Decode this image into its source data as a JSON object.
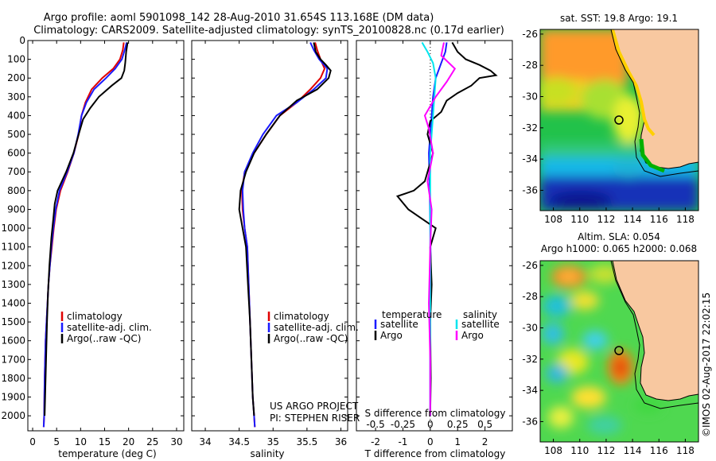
{
  "header": {
    "line1": "Argo profile: aoml 5901098_142 28-Aug-2010 31.654S 113.168E (DM data)",
    "line2": "Climatology: CARS2009. Satellite-adjusted climatology: synTS_20100828.nc (0.17d earlier)"
  },
  "colors": {
    "climatology": "#e00000",
    "satellite": "#1a1aff",
    "argo": "#000000",
    "salinity_satellite": "#00e5ee",
    "salinity_argo": "#ff00ff",
    "land": "#f8c8a0"
  },
  "chart_data": [
    {
      "type": "line",
      "panel": "temperature",
      "xlabel": "temperature (deg C)",
      "ylabel": "",
      "xlim": [
        -1,
        31.5
      ],
      "ylim": [
        2080,
        0
      ],
      "xticks": [
        0,
        5,
        10,
        15,
        20,
        25,
        30
      ],
      "yticks": [
        0,
        100,
        200,
        300,
        400,
        500,
        600,
        700,
        800,
        900,
        1000,
        1100,
        1200,
        1300,
        1400,
        1500,
        1600,
        1700,
        1800,
        1900,
        2000
      ],
      "legend": [
        "climatology",
        "satellite-adj. clim.",
        "Argo(..raw -QC)"
      ],
      "series": [
        {
          "name": "climatology",
          "x": [
            19,
            18.8,
            18.2,
            16.8,
            14.5,
            12.3,
            11,
            10.2,
            9.6,
            8.6,
            7.3,
            5.8,
            4.9,
            4.4,
            4.0,
            3.6,
            3.3,
            3.1,
            2.9,
            2.7,
            2.5,
            2.4,
            2.3
          ],
          "y": [
            10,
            50,
            100,
            150,
            200,
            260,
            330,
            400,
            500,
            600,
            700,
            800,
            900,
            1000,
            1100,
            1200,
            1300,
            1400,
            1500,
            1600,
            1800,
            2000,
            2060
          ]
        },
        {
          "name": "satellite-adj. clim.",
          "x": [
            19.6,
            19.2,
            18.6,
            17.2,
            15.3,
            12.8,
            11.2,
            10.2,
            9.5,
            8.6,
            7.2,
            5.6,
            4.8,
            4.3,
            3.9,
            3.6,
            3.3,
            3.1,
            2.9,
            2.7,
            2.5,
            2.4,
            2.3
          ],
          "y": [
            10,
            50,
            100,
            150,
            200,
            260,
            330,
            400,
            500,
            600,
            700,
            800,
            900,
            1000,
            1100,
            1200,
            1300,
            1400,
            1500,
            1600,
            1800,
            2000,
            2060
          ]
        },
        {
          "name": "Argo(..raw -QC)",
          "x": [
            19.8,
            19.5,
            19.3,
            19.1,
            18.5,
            16.5,
            13.8,
            12,
            10.5,
            9.6,
            8.5,
            7.0,
            5.2,
            4.6,
            4.3,
            3.9,
            3.5,
            3.2,
            3.0,
            2.8,
            2.6,
            2.5
          ],
          "y": [
            10,
            60,
            120,
            160,
            200,
            240,
            300,
            360,
            420,
            500,
            600,
            700,
            800,
            870,
            950,
            1050,
            1200,
            1350,
            1500,
            1700,
            1900,
            2000
          ]
        }
      ]
    },
    {
      "type": "line",
      "panel": "salinity",
      "xlabel": "salinity",
      "ylabel": "",
      "xlim": [
        33.8,
        36.1
      ],
      "ylim": [
        2080,
        0
      ],
      "xticks": [
        34,
        34.5,
        35,
        35.5,
        36
      ],
      "xticklabels": [
        "34",
        "34.5",
        "35",
        "35.5",
        "36"
      ],
      "legend": [
        "climatology",
        "satellite-adj. clim.",
        "Argo(..raw -QC)"
      ],
      "annotations": [
        "US ARGO PROJECT",
        "PI: STEPHEN RISER"
      ],
      "series": [
        {
          "name": "climatology",
          "x": [
            35.62,
            35.65,
            35.7,
            35.76,
            35.7,
            35.55,
            35.35,
            35.1,
            34.9,
            34.72,
            34.58,
            34.54,
            34.55,
            34.58,
            34.62,
            34.64,
            34.66,
            34.68,
            34.7,
            34.72,
            34.73
          ],
          "y": [
            10,
            50,
            100,
            150,
            200,
            260,
            330,
            400,
            500,
            600,
            700,
            800,
            900,
            1000,
            1100,
            1300,
            1500,
            1700,
            1900,
            2000,
            2060
          ]
        },
        {
          "name": "satellite-adj. clim.",
          "x": [
            35.55,
            35.6,
            35.68,
            35.8,
            35.78,
            35.6,
            35.35,
            35.05,
            34.85,
            34.7,
            34.58,
            34.55,
            34.56,
            34.58,
            34.62,
            34.64,
            34.66,
            34.68,
            34.7,
            34.72,
            34.73
          ],
          "y": [
            10,
            50,
            100,
            150,
            200,
            260,
            330,
            400,
            500,
            600,
            700,
            800,
            900,
            1000,
            1100,
            1300,
            1500,
            1700,
            1900,
            2000,
            2060
          ]
        },
        {
          "name": "Argo(..raw -QC)",
          "x": [
            35.6,
            35.63,
            35.7,
            35.78,
            35.85,
            35.82,
            35.65,
            35.35,
            35.1,
            34.9,
            34.72,
            34.6,
            34.52,
            34.5,
            34.55,
            34.6,
            34.63,
            34.66,
            34.68,
            34.7,
            34.72
          ],
          "y": [
            10,
            60,
            100,
            130,
            160,
            200,
            260,
            320,
            400,
            500,
            600,
            700,
            800,
            900,
            1000,
            1100,
            1300,
            1500,
            1700,
            1900,
            2000
          ]
        }
      ]
    },
    {
      "type": "line",
      "panel": "difference",
      "xlabel": "T difference from climatology",
      "xlabel_top": "S difference from climatology",
      "xlim": [
        -2.7,
        3.0
      ],
      "ylim": [
        2080,
        0
      ],
      "xticks": [
        -2,
        -1,
        0,
        1,
        2
      ],
      "s_ticklabels": [
        "-0.5",
        "-0.25",
        "0",
        "0.25",
        "0.5"
      ],
      "legend_temperature": [
        "temperature",
        "satellite",
        "Argo"
      ],
      "legend_salinity": [
        "salinity",
        "satellite",
        "Argo"
      ],
      "series": [
        {
          "name": "satellite",
          "x": [
            0.6,
            0.55,
            0.4,
            0.2,
            0.1,
            0.05,
            0,
            -0.05,
            -0.02,
            0,
            0.02,
            0,
            0,
            0,
            0
          ],
          "y": [
            10,
            60,
            120,
            200,
            300,
            400,
            500,
            600,
            800,
            1000,
            1200,
            1400,
            1600,
            1800,
            2000
          ]
        },
        {
          "name": "Argo",
          "x": [
            0.8,
            1.0,
            1.3,
            1.8,
            2.2,
            2.4,
            1.8,
            1.5,
            1.0,
            0.6,
            0.4,
            0.0,
            -0.1,
            0.1,
            -0.2,
            -0.6,
            -1.2,
            -0.8,
            -0.3,
            0.2,
            0,
            0.05,
            0,
            0.02,
            0
          ],
          "y": [
            10,
            60,
            100,
            130,
            160,
            185,
            200,
            240,
            280,
            320,
            380,
            430,
            500,
            600,
            750,
            800,
            830,
            900,
            950,
            1000,
            1100,
            1300,
            1500,
            1800,
            2000
          ]
        },
        {
          "name": "salinity satellite",
          "x": [
            -0.3,
            -0.1,
            0.1,
            0.2,
            0.15,
            0.1,
            0.05,
            0,
            0,
            0,
            0,
            0,
            0,
            0
          ],
          "y": [
            10,
            60,
            120,
            200,
            300,
            400,
            500,
            600,
            800,
            1000,
            1200,
            1500,
            1800,
            2000
          ]
        },
        {
          "name": "salinity Argo",
          "x": [
            0.5,
            0.4,
            0.9,
            0.6,
            0.2,
            -0.2,
            -0.05,
            0.1,
            -0.1,
            0.05,
            0.0,
            -0.05,
            0,
            0
          ],
          "y": [
            10,
            80,
            150,
            220,
            300,
            400,
            470,
            600,
            750,
            900,
            1100,
            1400,
            1700,
            2000
          ]
        }
      ]
    },
    {
      "type": "heatmap",
      "panel": "sst-map",
      "title": "sat. SST: 19.8 Argo: 19.1",
      "xlim": [
        107,
        119
      ],
      "ylim": [
        -37.3,
        -25.7
      ],
      "xticks": [
        108,
        110,
        112,
        114,
        116,
        118
      ],
      "yticks": [
        -26,
        -28,
        -30,
        -32,
        -34,
        -36
      ],
      "float_position": {
        "lon": 113.168,
        "lat": -31.654
      }
    },
    {
      "type": "heatmap",
      "panel": "sla-map",
      "title_line1": "Altim. SLA: 0.054",
      "title_line2": "Argo h1000: 0.065 h2000: 0.068",
      "xlim": [
        107,
        119
      ],
      "ylim": [
        -37.3,
        -25.7
      ],
      "xticks": [
        108,
        110,
        112,
        114,
        116,
        118
      ],
      "yticks": [
        -26,
        -28,
        -30,
        -32,
        -34,
        -36
      ],
      "float_position": {
        "lon": 113.168,
        "lat": -31.654
      }
    }
  ],
  "footer_stamp": "©IMOS 02-Aug-2017 22:02:15"
}
